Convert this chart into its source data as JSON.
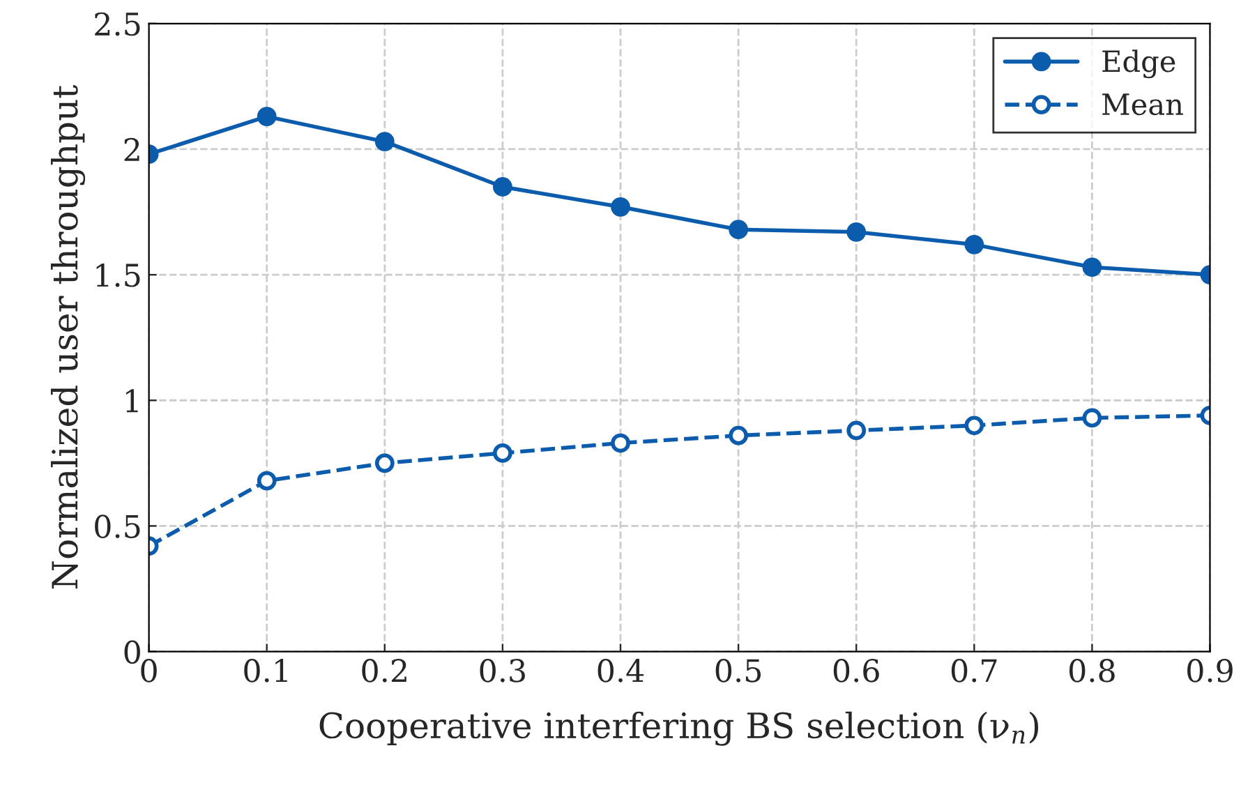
{
  "chart_data": {
    "type": "line",
    "xlabel": "Cooperative interfering BS selection (ν$_{n}$)",
    "ylabel": "Normalized user throughput",
    "x": [
      0,
      0.1,
      0.2,
      0.3,
      0.4,
      0.5,
      0.6,
      0.7,
      0.8,
      0.9
    ],
    "series": [
      {
        "name": "Edge",
        "color": "#0b5cad",
        "line_style": "solid",
        "values": [
          1.98,
          2.13,
          2.03,
          1.85,
          1.77,
          1.68,
          1.67,
          1.62,
          1.53,
          1.5
        ]
      },
      {
        "name": "Mean",
        "color": "#0b5cad",
        "line_style": "dashed",
        "values": [
          0.42,
          0.68,
          0.75,
          0.79,
          0.83,
          0.86,
          0.88,
          0.9,
          0.93,
          0.94
        ]
      }
    ],
    "xlim": [
      0,
      0.9
    ],
    "xticks": [
      0,
      0.1,
      0.2,
      0.3,
      0.4,
      0.5,
      0.6,
      0.7,
      0.8,
      0.9
    ],
    "ylim": [
      0,
      2.5
    ],
    "yticks": [
      0,
      0.5,
      1,
      1.5,
      2,
      2.5
    ],
    "grid": true,
    "legend": "top right",
    "marker": "circle"
  }
}
